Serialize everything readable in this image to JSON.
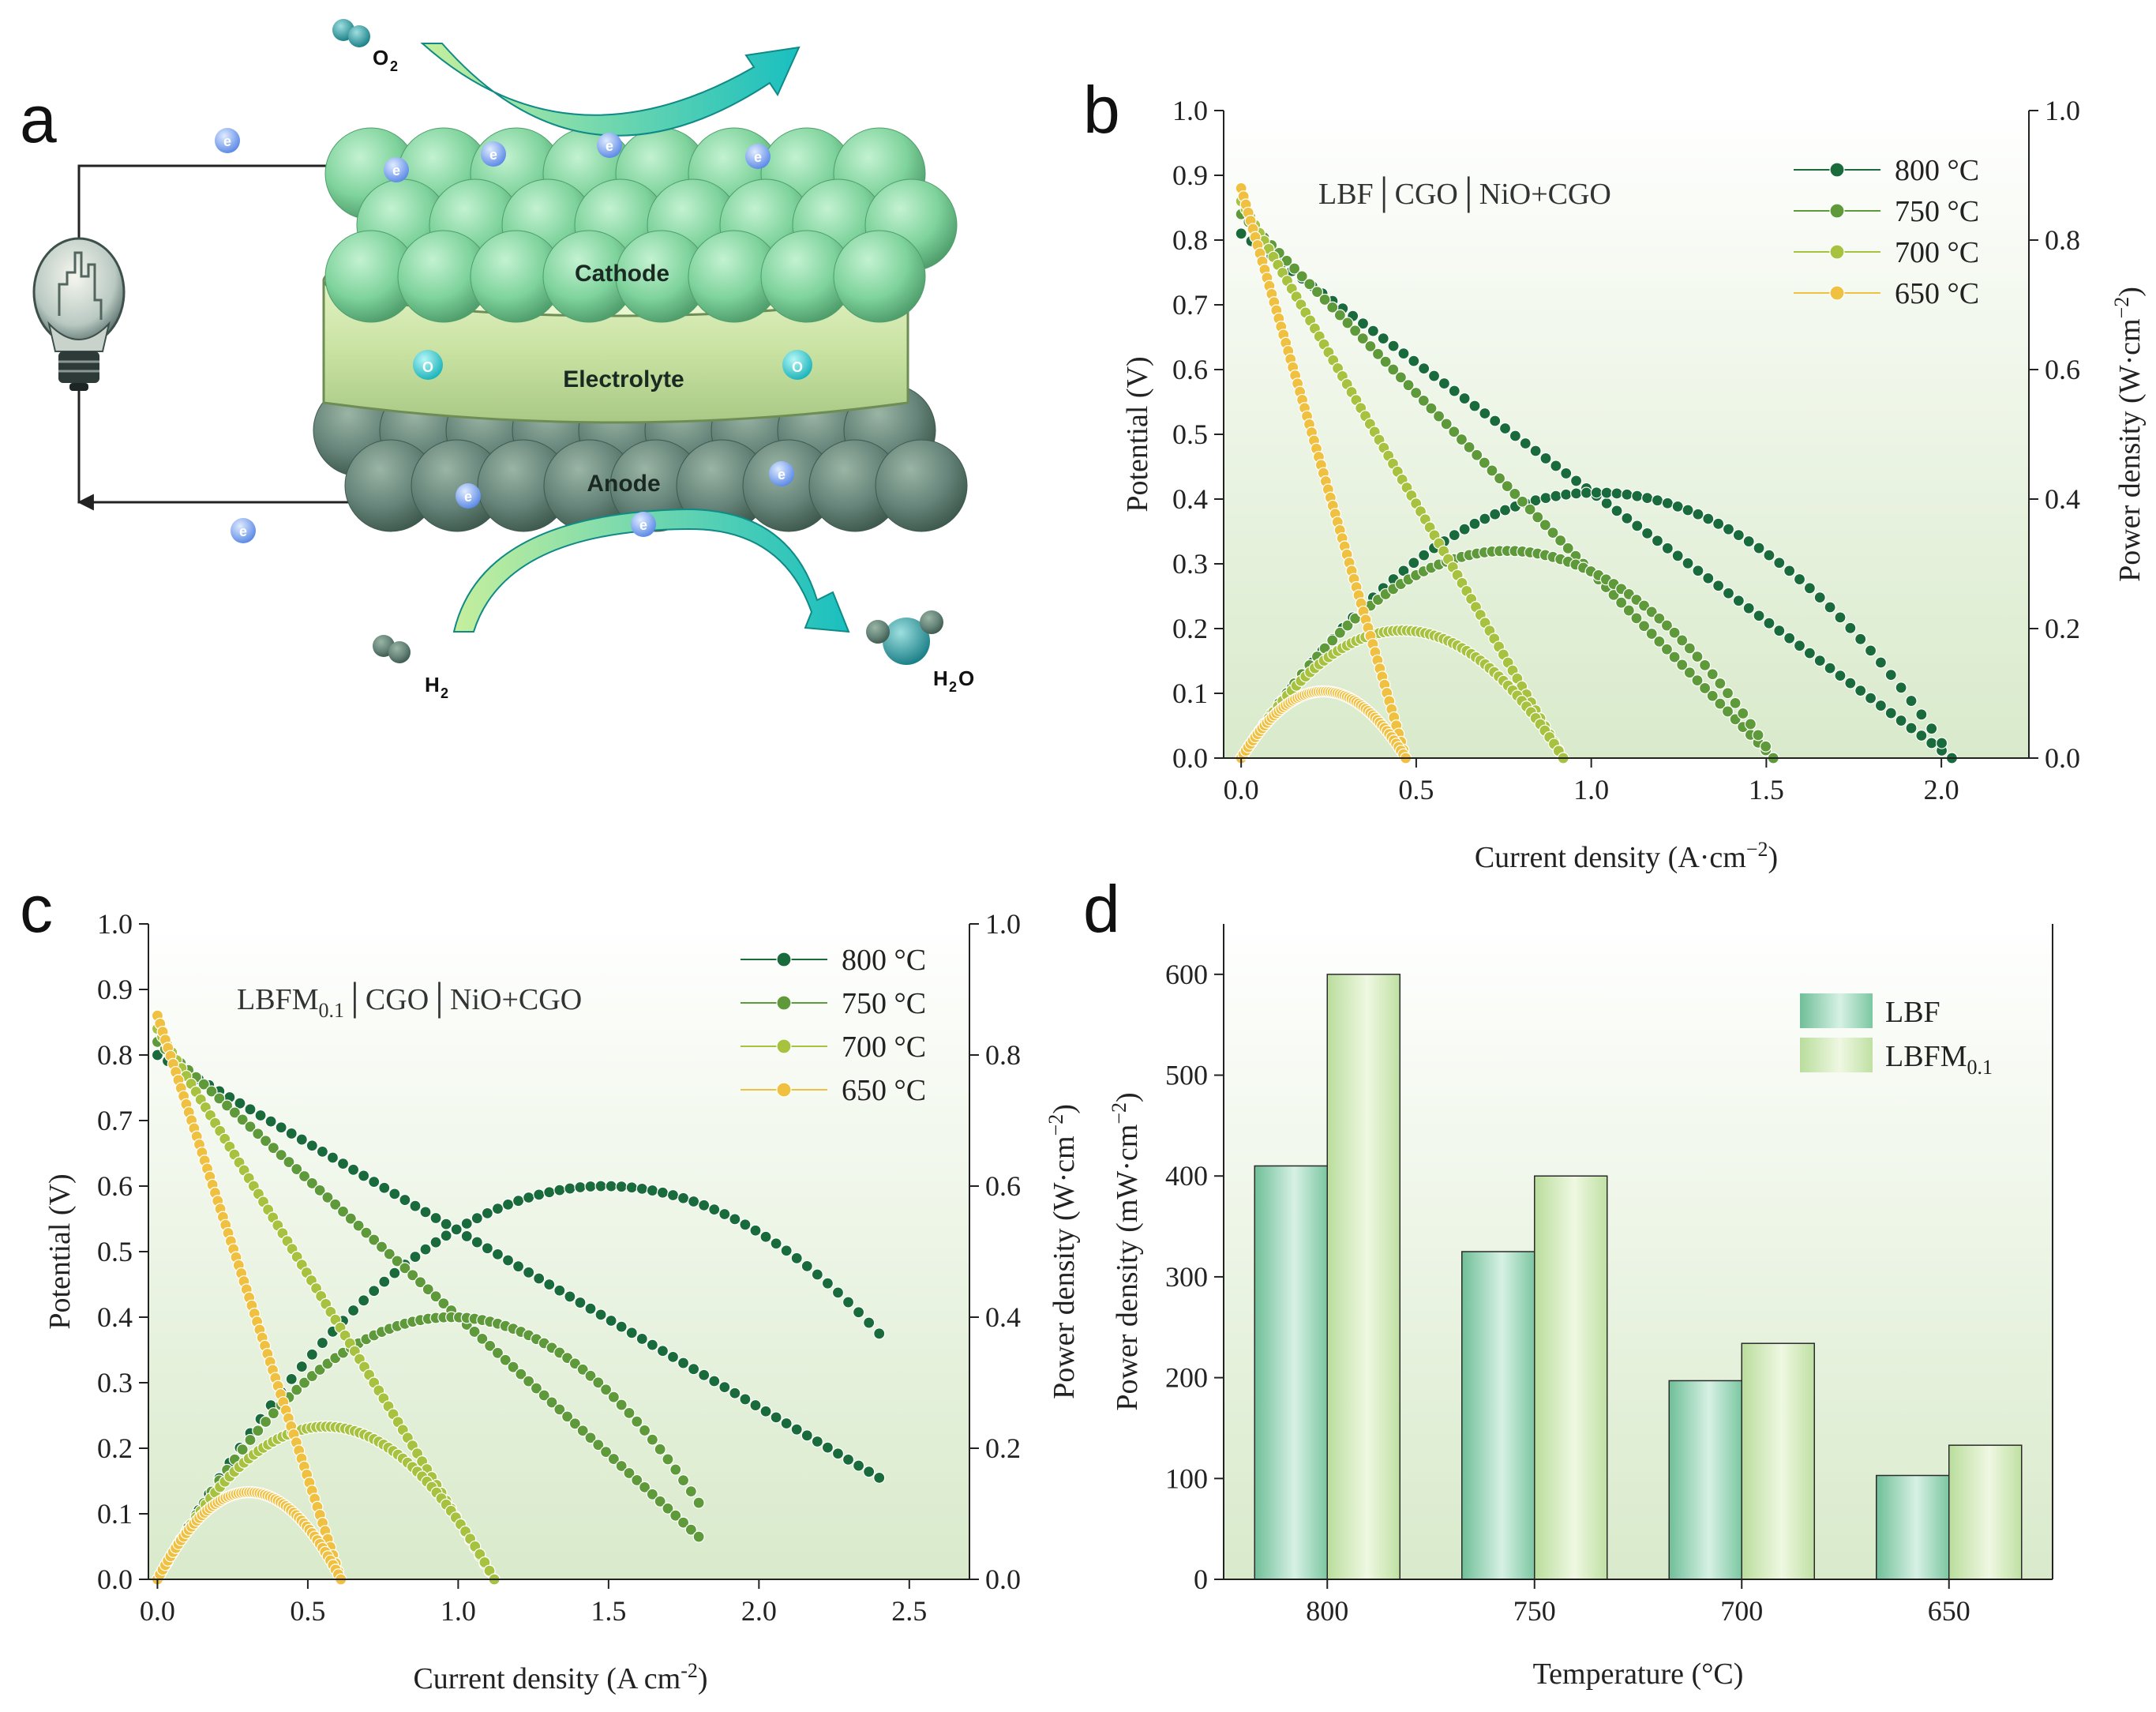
{
  "panel_labels": {
    "a": "a",
    "b": "b",
    "c": "c",
    "d": "d"
  },
  "diagram": {
    "cathode": "Cathode",
    "electrolyte": "Electrolyte",
    "anode": "Anode",
    "o2": "O",
    "o2_sub": "2",
    "h2": "H",
    "h2_sub": "2",
    "h2o_h": "H",
    "h2o_sub": "2",
    "h2o_o": "O",
    "electron": "e",
    "ion": "O",
    "colors": {
      "cathode": "#7ccf98",
      "electrolyte": "#cfe6a8",
      "anode": "#5f7d6c",
      "electron": "#7aa4f0",
      "ion": "#2cc3c9",
      "arrow": "#20c0b4"
    }
  },
  "colors": {
    "800": "#1a6b3c",
    "750": "#5e9a3a",
    "700": "#a6c23e",
    "650": "#f0c040",
    "bar_lbf": "#8fd0b2",
    "bar_lbfm": "#cde8ad",
    "bg_top": "#ffffff",
    "bg_bottom": "#dcebd0"
  },
  "chart_data": [
    {
      "id": "b",
      "type": "line",
      "note": "LBF│CGO│NiO+CGO",
      "xlabel": "Current density (A·cm",
      "xlabel_sup": "−2",
      "xlabel_end": ")",
      "ylabel": "Potential (V)",
      "y2label": "Power density (W·cm",
      "y2label_sup": "−2",
      "y2label_end": ")",
      "xlim": [
        -0.05,
        2.25
      ],
      "ylim": [
        0,
        1.0
      ],
      "y2lim": [
        0,
        1.0
      ],
      "xticks": [
        "0.0",
        "0.5",
        "1.0",
        "1.5",
        "2.0"
      ],
      "xtick_values": [
        0,
        0.5,
        1.0,
        1.5,
        2.0
      ],
      "yticks": [
        "0.0",
        "0.1",
        "0.2",
        "0.3",
        "0.4",
        "0.5",
        "0.6",
        "0.7",
        "0.8",
        "0.9",
        "1.0"
      ],
      "y2ticks": [
        "0.0",
        "0.2",
        "0.4",
        "0.6",
        "0.8",
        "1.0"
      ],
      "legend": [
        "800 °C",
        "750 °C",
        "700 °C",
        "650 °C"
      ],
      "series": [
        {
          "name": "800 °C",
          "ocv": 0.81,
          "imax": 2.03,
          "pmax": 0.41
        },
        {
          "name": "750 °C",
          "ocv": 0.84,
          "imax": 1.52,
          "pmax": 0.32
        },
        {
          "name": "700 °C",
          "ocv": 0.86,
          "imax": 0.92,
          "pmax": 0.197
        },
        {
          "name": "650 °C",
          "ocv": 0.88,
          "imax": 0.47,
          "pmax": 0.103
        }
      ]
    },
    {
      "id": "c",
      "type": "line",
      "note": "LBFM",
      "note_sub": "0.1",
      "note_end": "│CGO│NiO+CGO",
      "xlabel": "Current density (A cm",
      "xlabel_sup": "-2",
      "xlabel_end": ")",
      "ylabel": "Potential (V)",
      "y2label": "Power density (W·cm",
      "y2label_sup": "−2",
      "y2label_end": ")",
      "xlim": [
        -0.03,
        2.7
      ],
      "ylim": [
        0,
        1.0
      ],
      "y2lim": [
        0,
        1.0
      ],
      "xticks": [
        "0.0",
        "0.5",
        "1.0",
        "1.5",
        "2.0",
        "2.5"
      ],
      "xtick_values": [
        0,
        0.5,
        1.0,
        1.5,
        2.0,
        2.5
      ],
      "yticks": [
        "0.0",
        "0.1",
        "0.2",
        "0.3",
        "0.4",
        "0.5",
        "0.6",
        "0.7",
        "0.8",
        "0.9",
        "1.0"
      ],
      "y2ticks": [
        "0.0",
        "0.2",
        "0.4",
        "0.6",
        "0.8",
        "1.0"
      ],
      "legend": [
        "800 °C",
        "750 °C",
        "700 °C",
        "650 °C"
      ],
      "series": [
        {
          "name": "800 °C",
          "ocv": 0.8,
          "iend": 2.4,
          "vend": 0.155,
          "pmax": 0.6
        },
        {
          "name": "750 °C",
          "ocv": 0.82,
          "iend": 1.8,
          "vend": 0.065,
          "pmax": 0.4
        },
        {
          "name": "700 °C",
          "ocv": 0.84,
          "iend": 1.12,
          "vend": 0.0,
          "pmax": 0.233
        },
        {
          "name": "650 °C",
          "ocv": 0.86,
          "iend": 0.61,
          "vend": 0.0,
          "pmax": 0.133
        }
      ]
    },
    {
      "id": "d",
      "type": "bar",
      "xlabel": "Temperature (°C)",
      "ylabel": "Power density (mW·cm",
      "ylabel_sup": "−2",
      "ylabel_end": ")",
      "ylim": [
        0,
        650
      ],
      "yticks": [
        "0",
        "100",
        "200",
        "300",
        "400",
        "500",
        "600"
      ],
      "categories": [
        "800",
        "750",
        "700",
        "650"
      ],
      "series": [
        {
          "name": "LBF",
          "values": [
            410,
            325,
            197,
            103
          ]
        },
        {
          "name": "LBFM",
          "name_sub": "0.1",
          "values": [
            600,
            400,
            234,
            133
          ]
        }
      ]
    }
  ]
}
